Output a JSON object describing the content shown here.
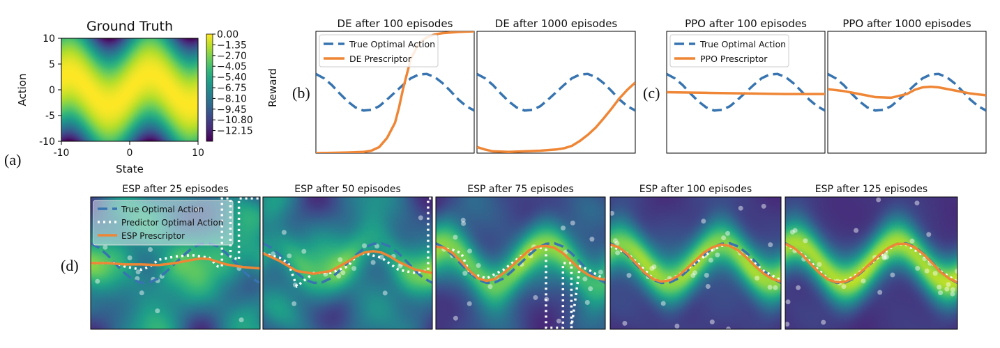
{
  "panel_labels": {
    "a": "(a)",
    "b": "(b)",
    "c": "(c)",
    "d": "(d)"
  },
  "colors": {
    "true_action": "#3774b0",
    "prescriptor": "#ef8636",
    "predictor": "#ffffff",
    "viridis": [
      "#440154",
      "#482878",
      "#3e4989",
      "#31688e",
      "#26828e",
      "#1f9e89",
      "#35b779",
      "#6ece58",
      "#b5de2b",
      "#fde725"
    ]
  },
  "chart_data": [
    {
      "type": "heatmap",
      "title": "Ground Truth",
      "xlabel": "State",
      "ylabel": "Action",
      "xlim": [
        -10,
        10
      ],
      "ylim": [
        -10,
        10
      ],
      "x_ticks": [
        "-10",
        "0",
        "10"
      ],
      "y_ticks": [
        "10",
        "5",
        "0",
        "-5",
        "-10"
      ],
      "colorbar_label": "Reward",
      "colorbar_ticks": [
        "0.00",
        "−1.35",
        "−2.70",
        "−4.05",
        "−5.40",
        "−6.75",
        "−8.10",
        "−9.45",
        "−10.80",
        "−12.15"
      ],
      "colorbar_range": [
        -13.5,
        0
      ],
      "colormap": "viridis"
    },
    {
      "type": "line",
      "group": "b",
      "title": "DE after 100 episodes",
      "legend": [
        "True Optimal Action",
        "DE Prescriptor"
      ],
      "legend_position": "top-left",
      "series": [
        {
          "name": "True Optimal Action",
          "style": "dashed",
          "x": [
            -10,
            -9,
            -8,
            -7,
            -6,
            -5,
            -4,
            -3,
            -2,
            -1,
            0,
            1,
            2,
            3,
            4,
            5,
            6,
            7,
            8,
            9,
            10
          ],
          "y": [
            3.0,
            2.3,
            1.2,
            -0.2,
            -1.5,
            -2.5,
            -3.0,
            -2.9,
            -2.3,
            -1.2,
            0.0,
            1.2,
            2.3,
            2.9,
            3.0,
            2.5,
            1.5,
            0.2,
            -1.2,
            -2.3,
            -3.0
          ]
        },
        {
          "name": "DE Prescriptor",
          "style": "solid",
          "x": [
            -10,
            -8,
            -6,
            -4,
            -3,
            -2,
            -1,
            0,
            0.5,
            1,
            1.5,
            2,
            3,
            4,
            5,
            6,
            8,
            10
          ],
          "y": [
            -10.0,
            -9.95,
            -9.9,
            -9.8,
            -9.6,
            -9.0,
            -7.5,
            -5.0,
            -2.5,
            0.5,
            3.0,
            5.5,
            8.0,
            9.0,
            9.5,
            9.7,
            9.9,
            10.0
          ]
        }
      ]
    },
    {
      "type": "line",
      "group": "b",
      "title": "DE after 1000 episodes",
      "series": [
        {
          "name": "True Optimal Action",
          "style": "dashed",
          "x": [
            -10,
            -9,
            -8,
            -7,
            -6,
            -5,
            -4,
            -3,
            -2,
            -1,
            0,
            1,
            2,
            3,
            4,
            5,
            6,
            7,
            8,
            9,
            10
          ],
          "y": [
            3.0,
            2.3,
            1.2,
            -0.2,
            -1.5,
            -2.5,
            -3.0,
            -2.9,
            -2.3,
            -1.2,
            0.0,
            1.2,
            2.3,
            2.9,
            3.0,
            2.5,
            1.5,
            0.2,
            -1.2,
            -2.3,
            -3.0
          ]
        },
        {
          "name": "DE Prescriptor",
          "style": "solid",
          "x": [
            -10,
            -9,
            -8,
            -6,
            -4,
            -2,
            0,
            1,
            2,
            3,
            4,
            5,
            6,
            7,
            8,
            9,
            10
          ],
          "y": [
            -9.0,
            -9.4,
            -9.7,
            -9.8,
            -9.7,
            -9.6,
            -9.4,
            -9.2,
            -8.8,
            -8.0,
            -7.0,
            -5.8,
            -4.3,
            -2.7,
            -1.0,
            0.4,
            1.6
          ]
        }
      ]
    },
    {
      "type": "line",
      "group": "c",
      "title": "PPO after 100 episodes",
      "legend": [
        "True Optimal Action",
        "PPO Prescriptor"
      ],
      "legend_position": "top-left",
      "series": [
        {
          "name": "True Optimal Action",
          "style": "dashed",
          "x": [
            -10,
            -9,
            -8,
            -7,
            -6,
            -5,
            -4,
            -3,
            -2,
            -1,
            0,
            1,
            2,
            3,
            4,
            5,
            6,
            7,
            8,
            9,
            10
          ],
          "y": [
            3.0,
            2.3,
            1.2,
            -0.2,
            -1.5,
            -2.5,
            -3.0,
            -2.9,
            -2.3,
            -1.2,
            0.0,
            1.2,
            2.3,
            2.9,
            3.0,
            2.5,
            1.5,
            0.2,
            -1.2,
            -2.3,
            -3.0
          ]
        },
        {
          "name": "PPO Prescriptor",
          "style": "solid",
          "x": [
            -10,
            -5,
            0,
            5,
            10
          ],
          "y": [
            0.0,
            -0.1,
            -0.2,
            -0.3,
            -0.3
          ]
        }
      ]
    },
    {
      "type": "line",
      "group": "c",
      "title": "PPO after 1000 episodes",
      "series": [
        {
          "name": "True Optimal Action",
          "style": "dashed",
          "x": [
            -10,
            -9,
            -8,
            -7,
            -6,
            -5,
            -4,
            -3,
            -2,
            -1,
            0,
            1,
            2,
            3,
            4,
            5,
            6,
            7,
            8,
            9,
            10
          ],
          "y": [
            3.0,
            2.3,
            1.2,
            -0.2,
            -1.5,
            -2.5,
            -3.0,
            -2.9,
            -2.3,
            -1.2,
            0.0,
            1.2,
            2.3,
            2.9,
            3.0,
            2.5,
            1.5,
            0.2,
            -1.2,
            -2.3,
            -3.0
          ]
        },
        {
          "name": "PPO Prescriptor",
          "style": "solid",
          "x": [
            -10,
            -8,
            -6,
            -4,
            -2,
            0,
            1,
            2,
            3,
            4,
            6,
            8,
            10
          ],
          "y": [
            0.5,
            0.2,
            -0.3,
            -0.8,
            -0.9,
            -0.3,
            0.4,
            0.8,
            0.9,
            0.8,
            0.3,
            -0.2,
            -0.5
          ]
        }
      ]
    },
    {
      "type": "line",
      "group": "d",
      "title": "ESP after 25 episodes",
      "legend": [
        "True Optimal Action",
        "Predictor Optimal Action",
        "ESP Prescriptor"
      ],
      "legend_position": "top-left",
      "series": [
        {
          "name": "True Optimal Action",
          "style": "dashed",
          "x": [
            -10,
            -9,
            -8,
            -7,
            -6,
            -5,
            -4,
            -3,
            -2,
            -1,
            0,
            1,
            2,
            3,
            4,
            5,
            6,
            7,
            8,
            9,
            10
          ],
          "y": [
            3.0,
            2.3,
            1.2,
            -0.2,
            -1.5,
            -2.5,
            -3.0,
            -2.9,
            -2.3,
            -1.2,
            0.0,
            1.2,
            2.3,
            2.9,
            3.0,
            2.5,
            1.5,
            0.2,
            -1.2,
            -2.3,
            -3.0
          ]
        },
        {
          "name": "Predictor Optimal Action",
          "style": "dotted",
          "x": [
            -10,
            -7,
            -6,
            -4,
            -3,
            -2,
            0,
            2,
            4,
            5,
            5.5,
            5.5,
            6.5,
            6.5,
            7.5,
            7.5,
            10
          ],
          "y": [
            0.0,
            0.0,
            -0.5,
            -1.0,
            -0.5,
            0.5,
            1.0,
            1.2,
            0.8,
            -0.5,
            -0.5,
            9.8,
            9.8,
            1.0,
            0.5,
            9.8,
            9.8
          ]
        },
        {
          "name": "ESP Prescriptor",
          "style": "solid",
          "x": [
            -10,
            -8,
            -6,
            -4,
            -2,
            0,
            2,
            3,
            4,
            6,
            8,
            10
          ],
          "y": [
            0.0,
            0.0,
            -0.2,
            -0.2,
            -0.3,
            0.0,
            0.5,
            0.7,
            0.6,
            -0.2,
            -0.6,
            -0.8
          ]
        }
      ]
    },
    {
      "type": "line",
      "group": "d",
      "title": "ESP after 50 episodes",
      "series": [
        {
          "name": "True Optimal Action",
          "style": "dashed",
          "x": [
            -10,
            -9,
            -8,
            -7,
            -6,
            -5,
            -4,
            -3,
            -2,
            -1,
            0,
            1,
            2,
            3,
            4,
            5,
            6,
            7,
            8,
            9,
            10
          ],
          "y": [
            3.0,
            2.3,
            1.2,
            -0.2,
            -1.5,
            -2.5,
            -3.0,
            -2.9,
            -2.3,
            -1.2,
            0.0,
            1.2,
            2.3,
            2.9,
            3.0,
            2.5,
            1.5,
            0.2,
            -1.2,
            -2.3,
            -3.0
          ]
        },
        {
          "name": "Predictor Optimal Action",
          "style": "dotted",
          "x": [
            -10,
            -8,
            -7,
            -6,
            -5,
            -4,
            -2,
            0,
            1,
            2,
            4,
            6,
            8,
            9,
            9.5,
            9.5,
            10
          ],
          "y": [
            1.5,
            0.8,
            0.0,
            -3.5,
            -2.5,
            -1.5,
            -1.5,
            -0.5,
            1.0,
            1.5,
            0.8,
            -1.0,
            -1.5,
            -1.2,
            -1.2,
            9.8,
            9.8
          ]
        },
        {
          "name": "ESP Prescriptor",
          "style": "solid",
          "x": [
            -10,
            -8,
            -6,
            -4,
            -2,
            0,
            1,
            2,
            3,
            4,
            5,
            6,
            8,
            10
          ],
          "y": [
            1.5,
            0.3,
            -1.2,
            -1.6,
            -1.2,
            0.2,
            1.0,
            1.6,
            1.8,
            1.6,
            1.0,
            0.2,
            -1.0,
            -1.5
          ]
        }
      ]
    },
    {
      "type": "line",
      "group": "d",
      "title": "ESP after 75 episodes",
      "series": [
        {
          "name": "True Optimal Action",
          "style": "dashed",
          "x": [
            -10,
            -9,
            -8,
            -7,
            -6,
            -5,
            -4,
            -3,
            -2,
            -1,
            0,
            1,
            2,
            3,
            4,
            5,
            6,
            7,
            8,
            9,
            10
          ],
          "y": [
            3.0,
            2.3,
            1.2,
            -0.2,
            -1.5,
            -2.5,
            -3.0,
            -2.9,
            -2.3,
            -1.2,
            0.0,
            1.2,
            2.3,
            2.9,
            3.0,
            2.5,
            1.5,
            0.2,
            -1.2,
            -2.3,
            -3.0
          ]
        },
        {
          "name": "Predictor Optimal Action",
          "style": "dotted",
          "x": [
            -10,
            -8,
            -7,
            -6,
            -4,
            -2,
            0,
            2,
            3,
            3,
            4,
            5,
            5,
            6,
            6,
            7,
            8,
            10
          ],
          "y": [
            2.5,
            2.0,
            1.5,
            -1.5,
            -2.3,
            -1.0,
            1.0,
            2.5,
            2.0,
            -9.8,
            -9.8,
            -9.8,
            0.0,
            0.0,
            -9.8,
            -0.5,
            -1.0,
            -2.5
          ]
        },
        {
          "name": "ESP Prescriptor",
          "style": "solid",
          "x": [
            -10,
            -9,
            -8,
            -7,
            -6,
            -5,
            -4,
            -3,
            -2,
            -1,
            0,
            1,
            2,
            3,
            4,
            5,
            6,
            7,
            8,
            9,
            10
          ],
          "y": [
            2.5,
            2.3,
            1.5,
            0.2,
            -1.2,
            -2.3,
            -2.7,
            -2.4,
            -1.5,
            -0.4,
            0.8,
            1.9,
            2.5,
            2.6,
            2.3,
            1.5,
            0.3,
            -0.9,
            -1.8,
            -2.3,
            -2.5
          ]
        }
      ]
    },
    {
      "type": "line",
      "group": "d",
      "title": "ESP after 100 episodes",
      "series": [
        {
          "name": "True Optimal Action",
          "style": "dashed",
          "x": [
            -10,
            -9,
            -8,
            -7,
            -6,
            -5,
            -4,
            -3,
            -2,
            -1,
            0,
            1,
            2,
            3,
            4,
            5,
            6,
            7,
            8,
            9,
            10
          ],
          "y": [
            3.0,
            2.3,
            1.2,
            -0.2,
            -1.5,
            -2.5,
            -3.0,
            -2.9,
            -2.3,
            -1.2,
            0.0,
            1.2,
            2.3,
            2.9,
            3.0,
            2.5,
            1.5,
            0.2,
            -1.2,
            -2.3,
            -3.0
          ]
        },
        {
          "name": "Predictor Optimal Action",
          "style": "dotted",
          "x": [
            -10,
            -8,
            -6,
            -5,
            -4,
            -3,
            -2,
            0,
            2,
            3,
            4,
            6,
            8,
            10
          ],
          "y": [
            2.6,
            1.5,
            -1.0,
            -2.3,
            -2.8,
            -2.5,
            -1.8,
            0.0,
            2.0,
            2.6,
            2.7,
            1.0,
            -1.2,
            -2.6
          ]
        },
        {
          "name": "ESP Prescriptor",
          "style": "solid",
          "x": [
            -10,
            -9,
            -8,
            -7,
            -6,
            -5,
            -4,
            -3,
            -2,
            -1,
            0,
            1,
            2,
            3,
            4,
            5,
            6,
            7,
            8,
            9,
            10
          ],
          "y": [
            2.8,
            2.4,
            1.4,
            0.0,
            -1.4,
            -2.4,
            -2.8,
            -2.6,
            -1.9,
            -0.8,
            0.4,
            1.6,
            2.4,
            2.8,
            2.6,
            1.9,
            0.8,
            -0.5,
            -1.6,
            -2.4,
            -2.8
          ]
        }
      ]
    },
    {
      "type": "line",
      "group": "d",
      "title": "ESP after 125 episodes",
      "series": [
        {
          "name": "True Optimal Action",
          "style": "dashed",
          "x": [
            -10,
            -9,
            -8,
            -7,
            -6,
            -5,
            -4,
            -3,
            -2,
            -1,
            0,
            1,
            2,
            3,
            4,
            5,
            6,
            7,
            8,
            9,
            10
          ],
          "y": [
            3.0,
            2.3,
            1.2,
            -0.2,
            -1.5,
            -2.5,
            -3.0,
            -2.9,
            -2.3,
            -1.2,
            0.0,
            1.2,
            2.3,
            2.9,
            3.0,
            2.5,
            1.5,
            0.2,
            -1.2,
            -2.3,
            -3.0
          ]
        },
        {
          "name": "Predictor Optimal Action",
          "style": "dotted",
          "x": [
            -10,
            -8,
            -6,
            -5,
            -4,
            -3,
            -2,
            0,
            2,
            3,
            4,
            6,
            8,
            10
          ],
          "y": [
            2.8,
            1.4,
            -1.2,
            -2.4,
            -2.8,
            -2.6,
            -2.0,
            0.0,
            2.1,
            2.9,
            2.8,
            1.2,
            -1.2,
            -2.8
          ]
        },
        {
          "name": "ESP Prescriptor",
          "style": "solid",
          "x": [
            -10,
            -9,
            -8,
            -7,
            -6,
            -5,
            -4,
            -3,
            -2,
            -1,
            0,
            1,
            2,
            3,
            4,
            5,
            6,
            7,
            8,
            9,
            10
          ],
          "y": [
            2.9,
            2.3,
            1.2,
            -0.2,
            -1.5,
            -2.5,
            -2.9,
            -2.8,
            -2.2,
            -1.1,
            0.1,
            1.3,
            2.3,
            2.9,
            2.9,
            2.4,
            1.4,
            0.1,
            -1.3,
            -2.3,
            -2.9
          ]
        }
      ]
    }
  ]
}
